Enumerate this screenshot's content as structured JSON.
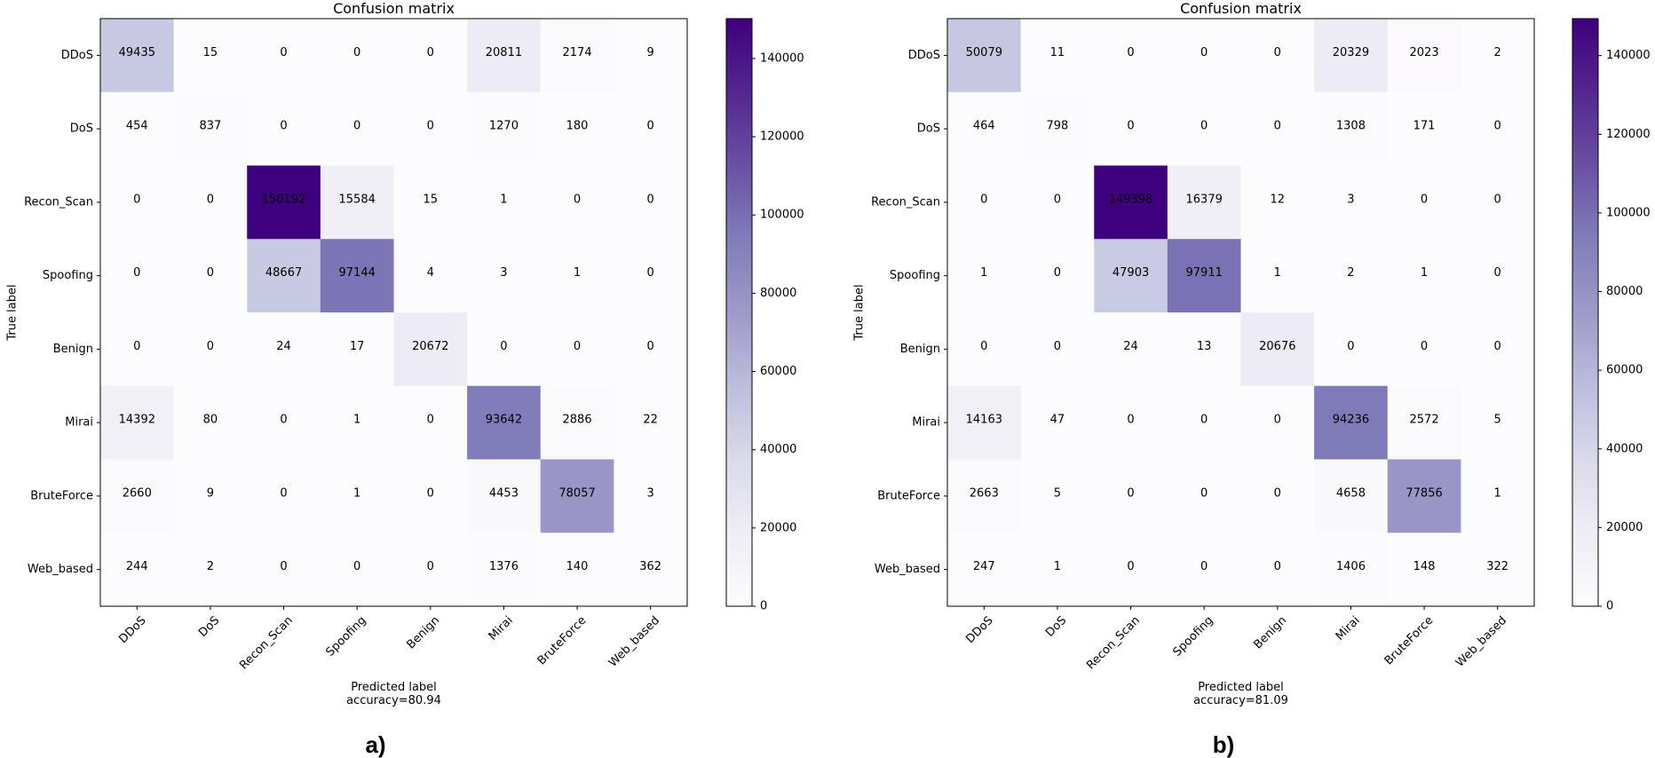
{
  "chart_data": [
    {
      "type": "heatmap",
      "panel_label": "a)",
      "title": "Confusion matrix",
      "xlabel": "Predicted label",
      "accuracy_text": "accuracy=80.94",
      "ylabel": "True label",
      "row_labels": [
        "DDoS",
        "DoS",
        "Recon_Scan",
        "Spoofing",
        "Benign",
        "Mirai",
        "BruteForce",
        "Web_based"
      ],
      "col_labels": [
        "DDoS",
        "DoS",
        "Recon_Scan",
        "Spoofing",
        "Benign",
        "Mirai",
        "BruteForce",
        "Web_based"
      ],
      "matrix": [
        [
          49435,
          15,
          0,
          0,
          0,
          20811,
          2174,
          9
        ],
        [
          454,
          837,
          0,
          0,
          0,
          1270,
          180,
          0
        ],
        [
          0,
          0,
          150192,
          15584,
          15,
          1,
          0,
          0
        ],
        [
          0,
          0,
          48667,
          97144,
          4,
          3,
          1,
          0
        ],
        [
          0,
          0,
          24,
          17,
          20672,
          0,
          0,
          0
        ],
        [
          14392,
          80,
          0,
          1,
          0,
          93642,
          2886,
          22
        ],
        [
          2660,
          9,
          0,
          1,
          0,
          4453,
          78057,
          3
        ],
        [
          244,
          2,
          0,
          0,
          0,
          1376,
          140,
          362
        ]
      ],
      "colorbar": {
        "min": 0,
        "max": 150192,
        "ticks": [
          0,
          20000,
          40000,
          60000,
          80000,
          100000,
          120000,
          140000
        ]
      }
    },
    {
      "type": "heatmap",
      "panel_label": "b)",
      "title": "Confusion matrix",
      "xlabel": "Predicted label",
      "accuracy_text": "accuracy=81.09",
      "ylabel": "True label",
      "row_labels": [
        "DDoS",
        "DoS",
        "Recon_Scan",
        "Spoofing",
        "Benign",
        "Mirai",
        "BruteForce",
        "Web_based"
      ],
      "col_labels": [
        "DDoS",
        "DoS",
        "Recon_Scan",
        "Spoofing",
        "Benign",
        "Mirai",
        "BruteForce",
        "Web_based"
      ],
      "matrix": [
        [
          50079,
          11,
          0,
          0,
          0,
          20329,
          2023,
          2
        ],
        [
          464,
          798,
          0,
          0,
          0,
          1308,
          171,
          0
        ],
        [
          0,
          0,
          149398,
          16379,
          12,
          3,
          0,
          0
        ],
        [
          1,
          0,
          47903,
          97911,
          1,
          2,
          1,
          0
        ],
        [
          0,
          0,
          24,
          13,
          20676,
          0,
          0,
          0
        ],
        [
          14163,
          47,
          0,
          0,
          0,
          94236,
          2572,
          5
        ],
        [
          2663,
          5,
          0,
          0,
          0,
          4658,
          77856,
          1
        ],
        [
          247,
          1,
          0,
          0,
          0,
          1406,
          148,
          322
        ]
      ],
      "colorbar": {
        "min": 0,
        "max": 149398,
        "ticks": [
          0,
          20000,
          40000,
          60000,
          80000,
          100000,
          120000,
          140000
        ]
      }
    }
  ]
}
